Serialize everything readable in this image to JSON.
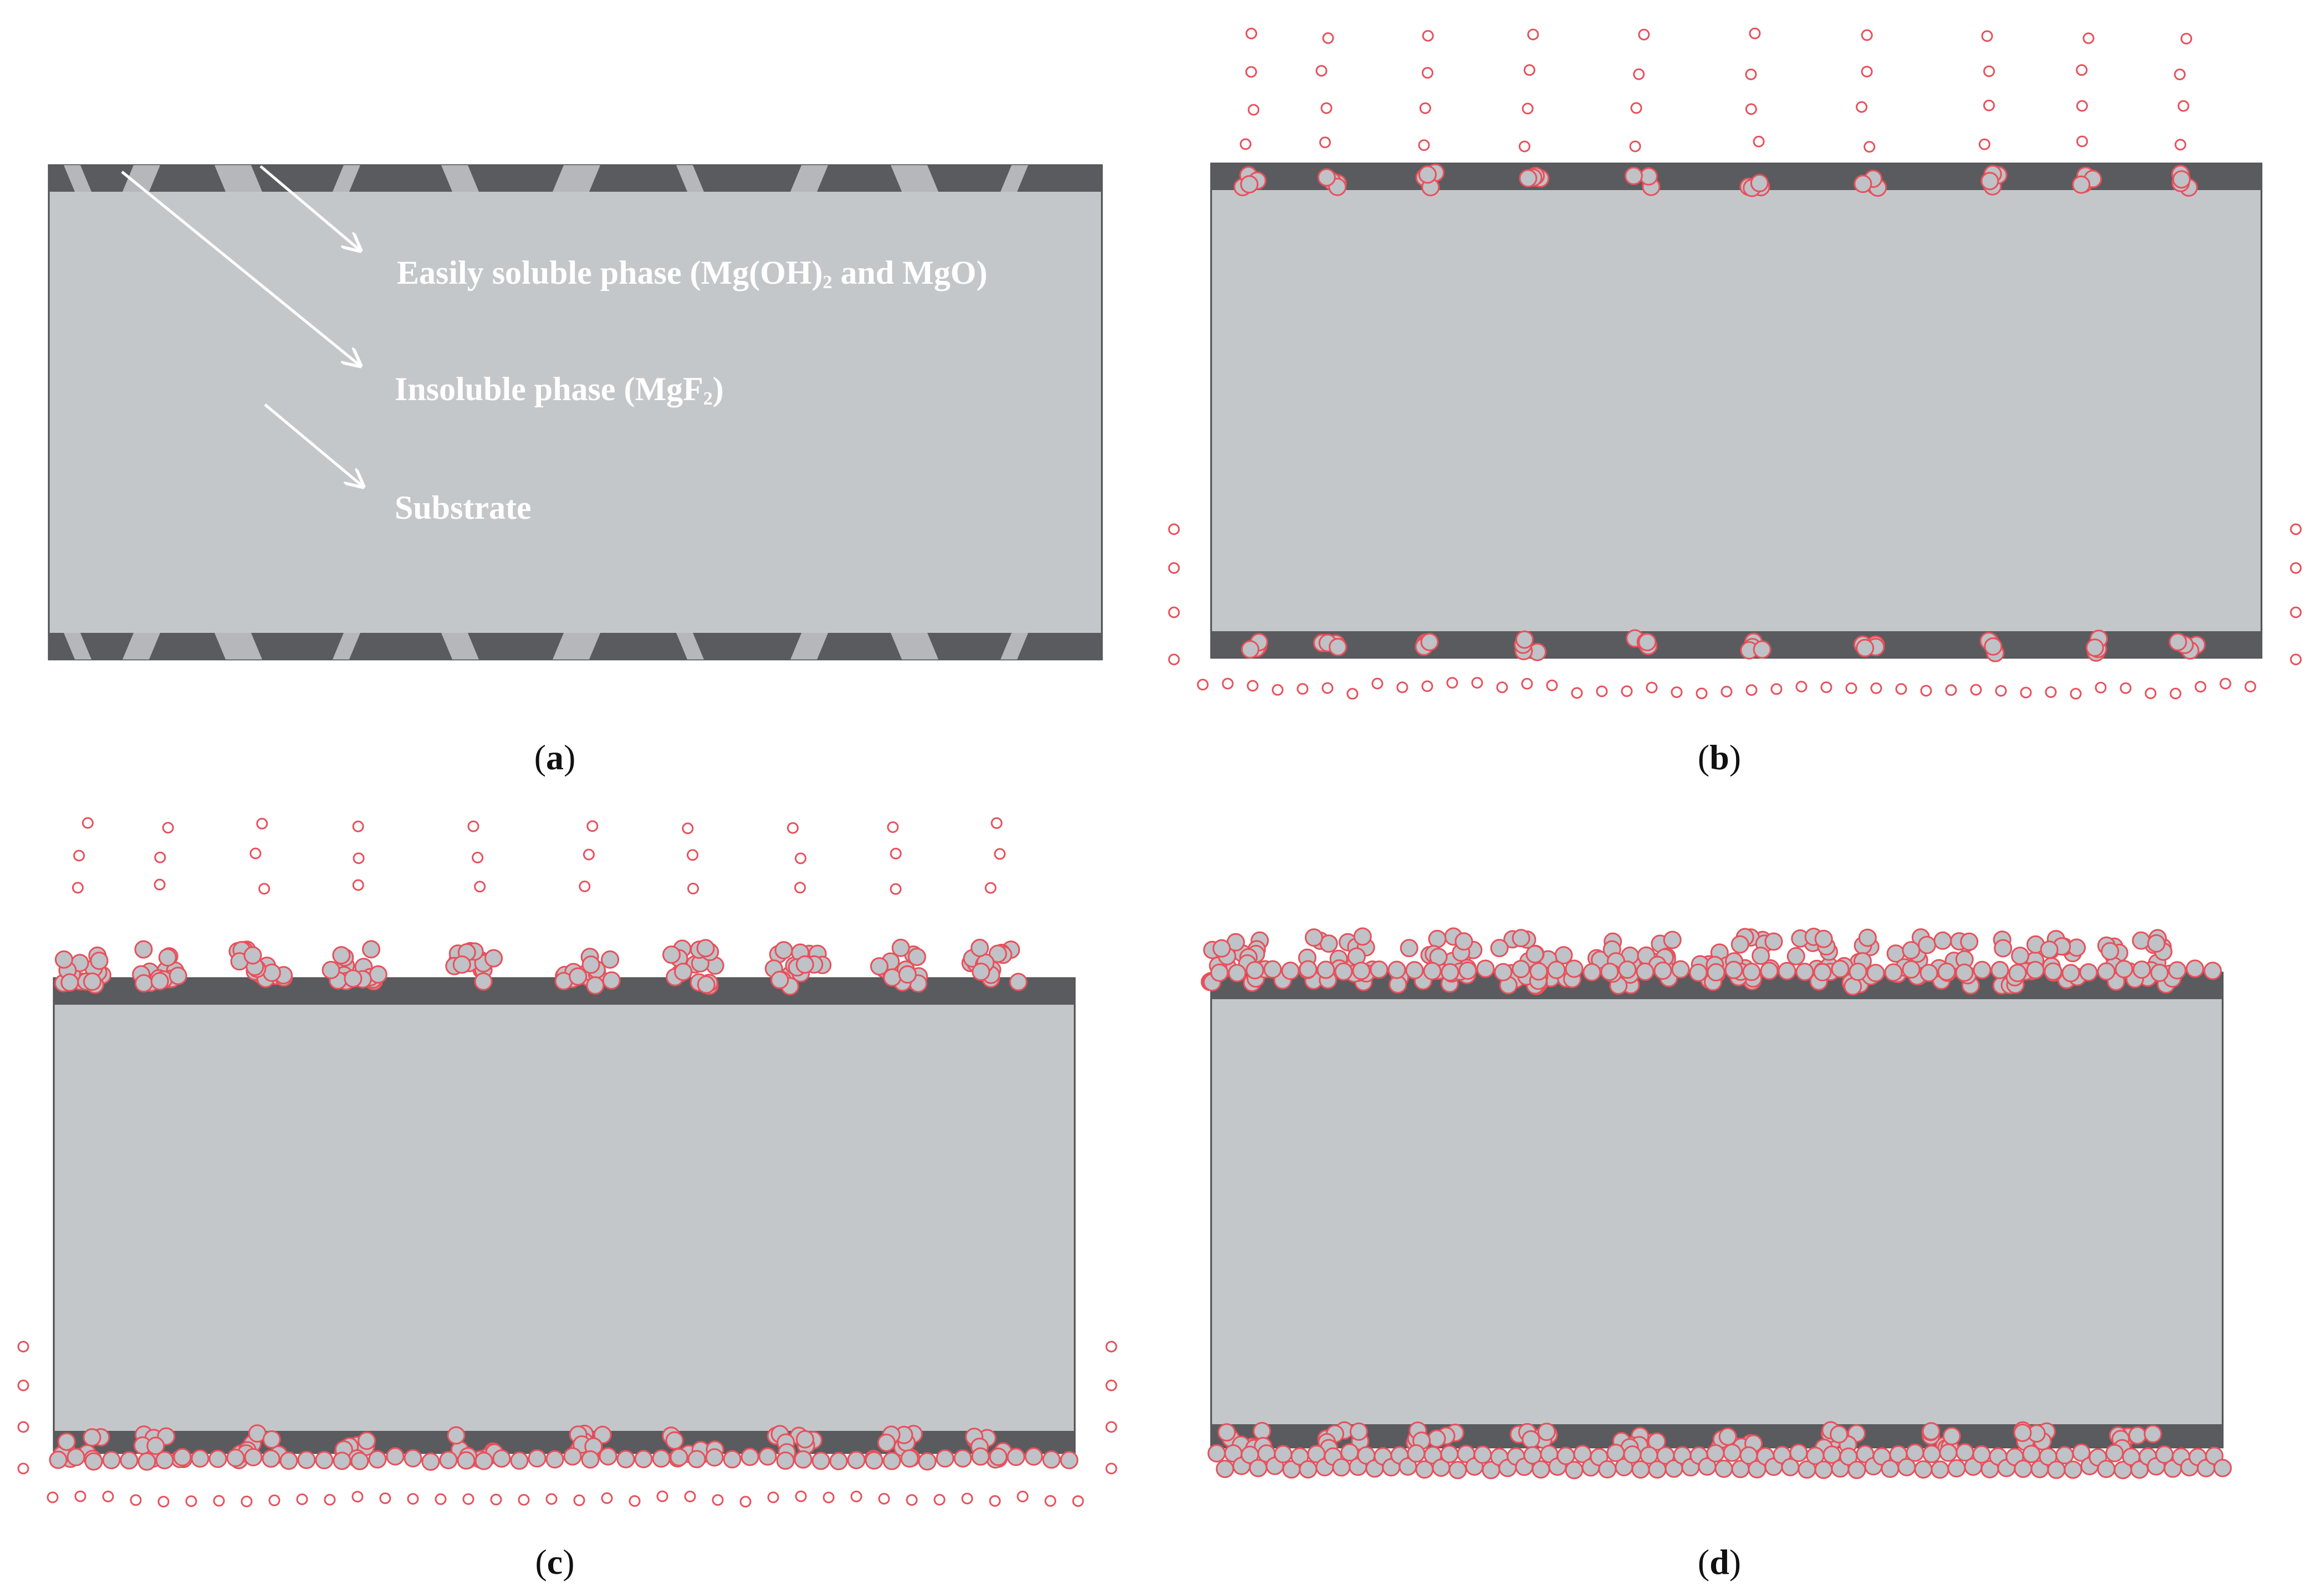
{
  "panels": [
    {
      "id": "a",
      "label_open": "(",
      "label_letter": "a",
      "label_close": ")"
    },
    {
      "id": "b",
      "label_open": "(",
      "label_letter": "b",
      "label_close": ")"
    },
    {
      "id": "c",
      "label_open": "(",
      "label_letter": "c",
      "label_close": ")"
    },
    {
      "id": "d",
      "label_open": "(",
      "label_letter": "d",
      "label_close": ")"
    }
  ],
  "annotations": {
    "soluble_pre": "Easily soluble phase (Mg(OH)",
    "soluble_sub": "2",
    "soluble_post": " and MgO)",
    "insoluble_pre": "Insoluble phase (MgF",
    "insoluble_sub": "2",
    "insoluble_post": ")",
    "substrate": "Substrate"
  },
  "colors": {
    "substrate": "#c4c7ca",
    "insoluble_layer": "#5a5b5e",
    "soluble_phase": "#b5b7ba",
    "particle_fill": "#bfc2c6",
    "particle_stroke": "#e8505b",
    "outline": "#4a4a4a"
  },
  "icons": {
    "arrow": "arrow-icon",
    "particle": "ion-particle-icon"
  }
}
